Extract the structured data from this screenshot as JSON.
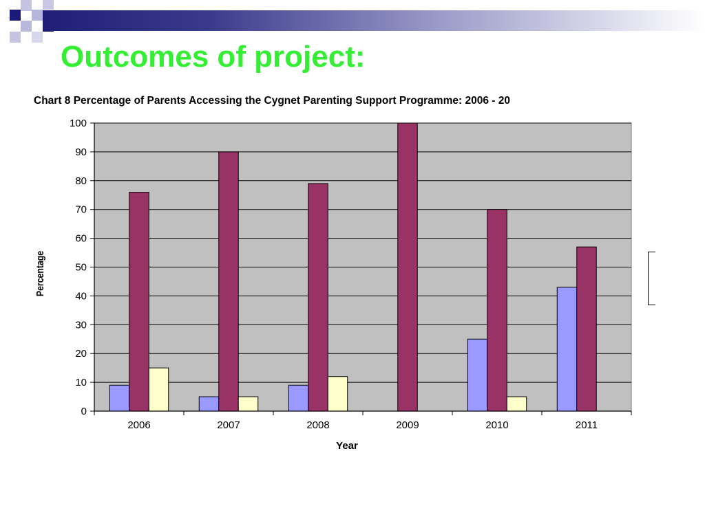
{
  "slide": {
    "title": "Outcomes of project:"
  },
  "colors": {
    "title": "#33ee33",
    "plot_background": "#c0c0c0",
    "gridline": "#000000",
    "logo_dark": "#1a1a7a",
    "logo_light": "#a9a9d6"
  },
  "chart_data": {
    "type": "bar",
    "title": "Chart 8 Percentage of Parents Accessing the Cygnet Parenting Support Programme: 2006 - 20",
    "xlabel": "Year",
    "ylabel": "Percentage",
    "ylim": [
      0,
      100
    ],
    "yticks": [
      0,
      10,
      20,
      30,
      40,
      50,
      60,
      70,
      80,
      90,
      100
    ],
    "grid": true,
    "categories": [
      "2006",
      "2007",
      "2008",
      "2009",
      "2010",
      "2011"
    ],
    "series": [
      {
        "color": "#9999ff",
        "values": [
          9,
          5,
          9,
          0,
          25,
          43
        ]
      },
      {
        "color": "#993366",
        "values": [
          76,
          90,
          79,
          100,
          70,
          57
        ]
      },
      {
        "color": "#ffffcc",
        "values": [
          15,
          5,
          12,
          0,
          5,
          0
        ]
      }
    ]
  }
}
